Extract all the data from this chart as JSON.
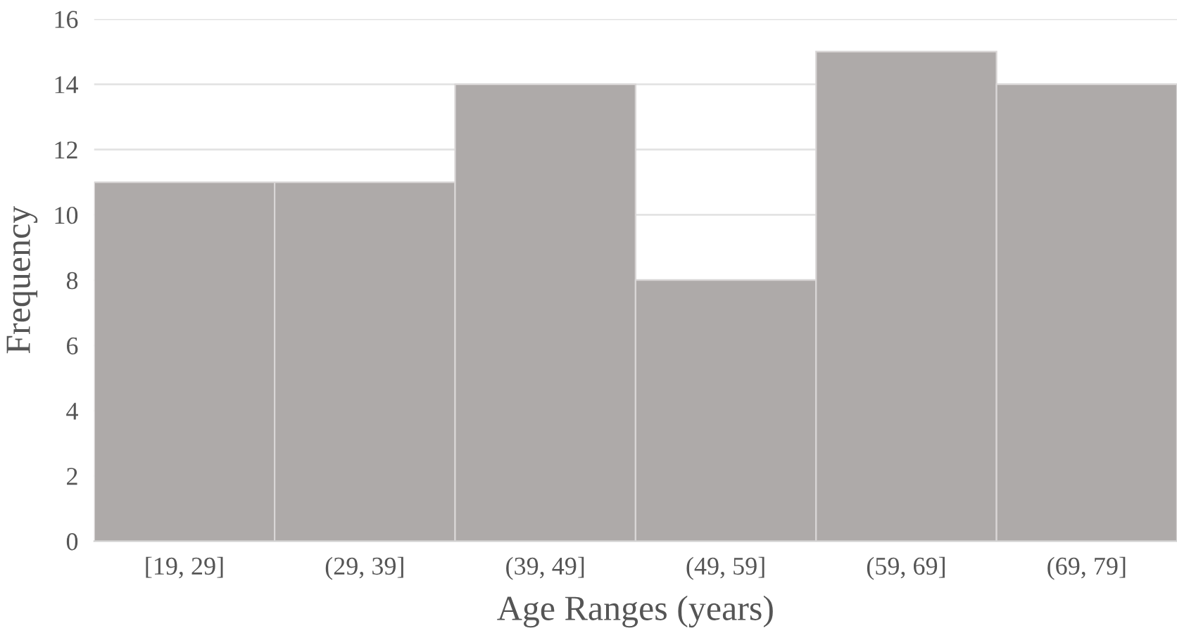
{
  "chart_data": {
    "type": "bar",
    "xlabel": "Age Ranges (years)",
    "ylabel": "Frequency",
    "categories": [
      "[19, 29]",
      "(29, 39]",
      "(39, 49]",
      "(49, 59]",
      "(59, 69]",
      "(69, 79]"
    ],
    "values": [
      11,
      11,
      14,
      8,
      15,
      14
    ],
    "color": "#aeaaa9",
    "ylim": [
      0,
      16
    ],
    "yticks": [
      0,
      2,
      4,
      6,
      8,
      10,
      12,
      14,
      16
    ],
    "grid": "y"
  }
}
